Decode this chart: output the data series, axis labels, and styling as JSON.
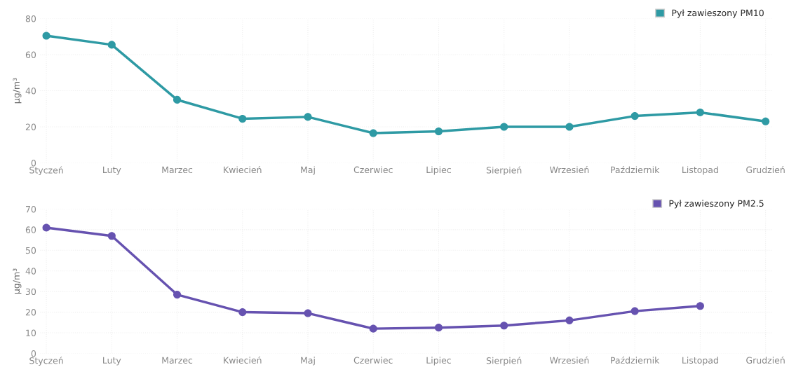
{
  "chart_data": [
    {
      "type": "line",
      "ylabel": "µg/m³",
      "categories": [
        "Styczeń",
        "Luty",
        "Marzec",
        "Kwiecień",
        "Maj",
        "Czerwiec",
        "Lipiec",
        "Sierpień",
        "Wrzesień",
        "Październik",
        "Listopad",
        "Grudzień"
      ],
      "series": [
        {
          "name": "Pył zawieszony PM10",
          "color": "#2e9aa4",
          "values": [
            70.5,
            65.5,
            35,
            24.5,
            25.5,
            16.5,
            17.5,
            20,
            20,
            26,
            28,
            23
          ]
        }
      ],
      "ylim": [
        0,
        80
      ],
      "yticks": [
        0,
        20,
        40,
        60,
        80
      ],
      "grid": true,
      "legend": "top right",
      "marker": "circle",
      "line_style": "solid"
    },
    {
      "type": "line",
      "ylabel": "µg/m³",
      "categories": [
        "Styczeń",
        "Luty",
        "Marzec",
        "Kwiecień",
        "Maj",
        "Czerwiec",
        "Lipiec",
        "Sierpień",
        "Wrzesień",
        "Październik",
        "Listopad",
        "Grudzień"
      ],
      "series": [
        {
          "name": "Pył zawieszony PM2.5",
          "color": "#6652b0",
          "values": [
            61,
            57,
            28.5,
            20,
            19.5,
            12,
            12.5,
            13.5,
            16,
            20.5,
            23,
            null
          ]
        }
      ],
      "ylim": [
        0,
        70
      ],
      "yticks": [
        0,
        10,
        20,
        30,
        40,
        50,
        60,
        70
      ],
      "grid": true,
      "legend": "top right",
      "marker": "circle",
      "line_style": "solid"
    }
  ]
}
